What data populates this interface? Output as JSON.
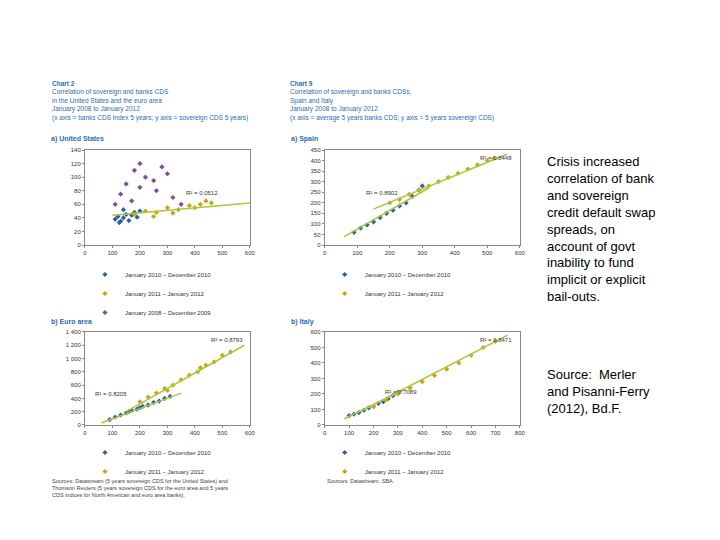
{
  "chart_data": [
    {
      "type": "scatter",
      "title": "a) United States",
      "marker": "diamond",
      "grid": false,
      "legend": "below",
      "xlim": [
        0,
        600
      ],
      "xticks": [
        0,
        100,
        200,
        300,
        400,
        500,
        600
      ],
      "ylim": [
        0,
        140
      ],
      "yticks": [
        0,
        20,
        40,
        60,
        80,
        100,
        120,
        140
      ],
      "annotations": [
        {
          "text": "R² = 0.0512"
        }
      ],
      "series": [
        {
          "name": "January 2010 – December 2010",
          "color": "#2f5fa8",
          "x": [
            110,
            120,
            130,
            140,
            150,
            160,
            170,
            180,
            190,
            200,
            140,
            125
          ],
          "values": [
            38,
            42,
            35,
            40,
            45,
            36,
            44,
            48,
            41,
            50,
            52,
            33
          ]
        },
        {
          "name": "January 2011 – January 2012",
          "color": "#d4a017",
          "x": [
            180,
            220,
            260,
            300,
            340,
            380,
            420,
            460,
            250,
            320,
            400,
            440
          ],
          "values": [
            45,
            50,
            48,
            55,
            52,
            58,
            60,
            62,
            42,
            47,
            55,
            65
          ]
        },
        {
          "name": "January 2008 – December 2009",
          "color": "#7b4fa0",
          "x": [
            110,
            130,
            150,
            180,
            200,
            220,
            250,
            280,
            300,
            320,
            260,
            200,
            170,
            350
          ],
          "values": [
            60,
            75,
            90,
            110,
            120,
            100,
            95,
            115,
            105,
            70,
            80,
            85,
            65,
            60
          ]
        },
        {
          "type": "line",
          "color": "#a6c93b",
          "line_style": "solid",
          "x": [
            100,
            600
          ],
          "values": [
            44,
            62
          ]
        }
      ]
    },
    {
      "type": "scatter",
      "title": "b) Euro area",
      "marker": "diamond",
      "grid": false,
      "legend": "below",
      "xlim": [
        0,
        600
      ],
      "xticks": [
        0,
        100,
        200,
        300,
        400,
        500,
        600
      ],
      "ylim": [
        0,
        1400
      ],
      "yticks": [
        0,
        200,
        400,
        600,
        800,
        {
          "value": 1000,
          "label": "1 000"
        },
        {
          "value": 1200,
          "label": "1 200"
        },
        {
          "value": 1400,
          "label": "1 400"
        }
      ],
      "annotations": [
        {
          "text": "R² = 0.8793"
        },
        {
          "text": "R² = 0.8205"
        }
      ],
      "series": [
        {
          "name": "January 2010 – December 2010",
          "color": "#2f5fa8",
          "x": [
            90,
            110,
            130,
            150,
            170,
            190,
            210,
            230,
            250,
            270,
            290,
            310,
            200,
            160
          ],
          "values": [
            80,
            120,
            150,
            180,
            220,
            240,
            280,
            300,
            340,
            360,
            400,
            430,
            260,
            200
          ]
        },
        {
          "name": "January 2011 – January 2012",
          "color": "#d4a017",
          "x": [
            200,
            230,
            260,
            290,
            320,
            350,
            380,
            410,
            440,
            470,
            500,
            530,
            300,
            420
          ],
          "values": [
            350,
            420,
            480,
            550,
            600,
            680,
            750,
            800,
            900,
            950,
            1050,
            1100,
            520,
            860
          ]
        },
        {
          "type": "line",
          "color": "#a6c93b",
          "line_style": "solid",
          "x": [
            150,
            580
          ],
          "values": [
            200,
            1200
          ]
        },
        {
          "type": "line",
          "color": "#a6c93b",
          "line_style": "solid",
          "x": [
            60,
            350
          ],
          "values": [
            30,
            480
          ]
        }
      ]
    },
    {
      "type": "scatter",
      "title": "a) Spain",
      "marker": "diamond",
      "grid": false,
      "legend": "below",
      "xlim": [
        0,
        600
      ],
      "xticks": [
        0,
        100,
        200,
        300,
        400,
        500,
        600
      ],
      "ylim": [
        0,
        450
      ],
      "yticks": [
        0,
        50,
        100,
        150,
        200,
        250,
        300,
        350,
        400,
        450
      ],
      "annotations": [
        {
          "text": "R² = 0.8448"
        },
        {
          "text": "R² = 0.8902"
        }
      ],
      "series": [
        {
          "name": "January 2010 – December 2010",
          "color": "#2f5fa8",
          "x": [
            90,
            110,
            130,
            150,
            170,
            190,
            210,
            230,
            250,
            270,
            290,
            300
          ],
          "values": [
            60,
            80,
            95,
            110,
            130,
            150,
            165,
            185,
            200,
            230,
            260,
            280
          ]
        },
        {
          "name": "January 2011 – January 2012",
          "color": "#d4a017",
          "x": [
            200,
            230,
            260,
            290,
            320,
            350,
            380,
            410,
            440,
            470,
            500,
            520
          ],
          "values": [
            200,
            215,
            240,
            260,
            280,
            300,
            320,
            340,
            360,
            380,
            400,
            410
          ]
        },
        {
          "type": "line",
          "color": "#a6c93b",
          "line_style": "solid",
          "x": [
            150,
            560
          ],
          "values": [
            170,
            430
          ]
        },
        {
          "type": "line",
          "color": "#a6c93b",
          "line_style": "solid",
          "x": [
            60,
            320
          ],
          "values": [
            40,
            270
          ]
        }
      ]
    },
    {
      "type": "scatter",
      "title": "b) Italy",
      "marker": "diamond",
      "grid": false,
      "legend": "below",
      "xlim": [
        0,
        800
      ],
      "xticks": [
        0,
        100,
        200,
        300,
        400,
        500,
        600,
        700,
        800
      ],
      "ylim": [
        0,
        600
      ],
      "yticks": [
        0,
        100,
        200,
        300,
        400,
        500,
        600
      ],
      "annotations": [
        {
          "text": "R² = 0.8471"
        },
        {
          "text": "R² = 0.7089"
        }
      ],
      "series": [
        {
          "name": "January 2010 – December 2010",
          "color": "#2f5fa8",
          "x": [
            100,
            120,
            140,
            160,
            180,
            200,
            220,
            240,
            260,
            280,
            300
          ],
          "values": [
            60,
            70,
            80,
            95,
            110,
            120,
            140,
            150,
            170,
            190,
            210
          ]
        },
        {
          "name": "January 2011 – January 2012",
          "color": "#d4a017",
          "x": [
            200,
            250,
            300,
            350,
            400,
            450,
            500,
            550,
            600,
            650,
            700
          ],
          "values": [
            120,
            160,
            200,
            240,
            280,
            320,
            360,
            400,
            450,
            500,
            540
          ]
        },
        {
          "type": "line",
          "color": "#a6c93b",
          "line_style": "solid",
          "x": [
            150,
            750
          ],
          "values": [
            90,
            580
          ]
        },
        {
          "type": "line",
          "color": "#a6c93b",
          "line_style": "solid",
          "x": [
            80,
            330
          ],
          "values": [
            40,
            230
          ]
        }
      ]
    }
  ],
  "headers": [
    {
      "lines": [
        "Chart 2",
        "Correlation of sovereign and banks CDS",
        "in the United States and the euro area",
        "January 2008 to January 2012",
        "(x axis = banks CDS index 5 years; y axis = sovereign CDS 5 years)"
      ]
    },
    {
      "lines": [
        "Chart 9",
        "Correlation of sovereign and banks CDSs,",
        "Spain and Italy",
        "January 2008 to January 2012",
        "(x axis = average 5 years banks CDS; y axis = 5 years sovereign CDS)"
      ]
    }
  ],
  "sources": [
    {
      "lines": [
        "Sources: Datastream (5 years sovereign CDS for the United States) and",
        "Thomson Reuters (5 years sovereign CDS for the euro area and 5 years",
        "CDS indices for North American and euro area banks)."
      ]
    },
    {
      "lines": [
        "Sources: Datastream, SBA."
      ]
    }
  ],
  "notes": [
    {
      "lines": [
        "Crisis increased",
        "correlation of bank",
        "and sovereign",
        "credit default swap",
        "spreads, on",
        "account of govt",
        "inability to fund",
        "implicit or explicit",
        "bail-outs."
      ]
    },
    {
      "lines": [
        "Source:  Merler",
        "and Pisanni-Ferry",
        "(2012), Bd.F."
      ]
    }
  ]
}
